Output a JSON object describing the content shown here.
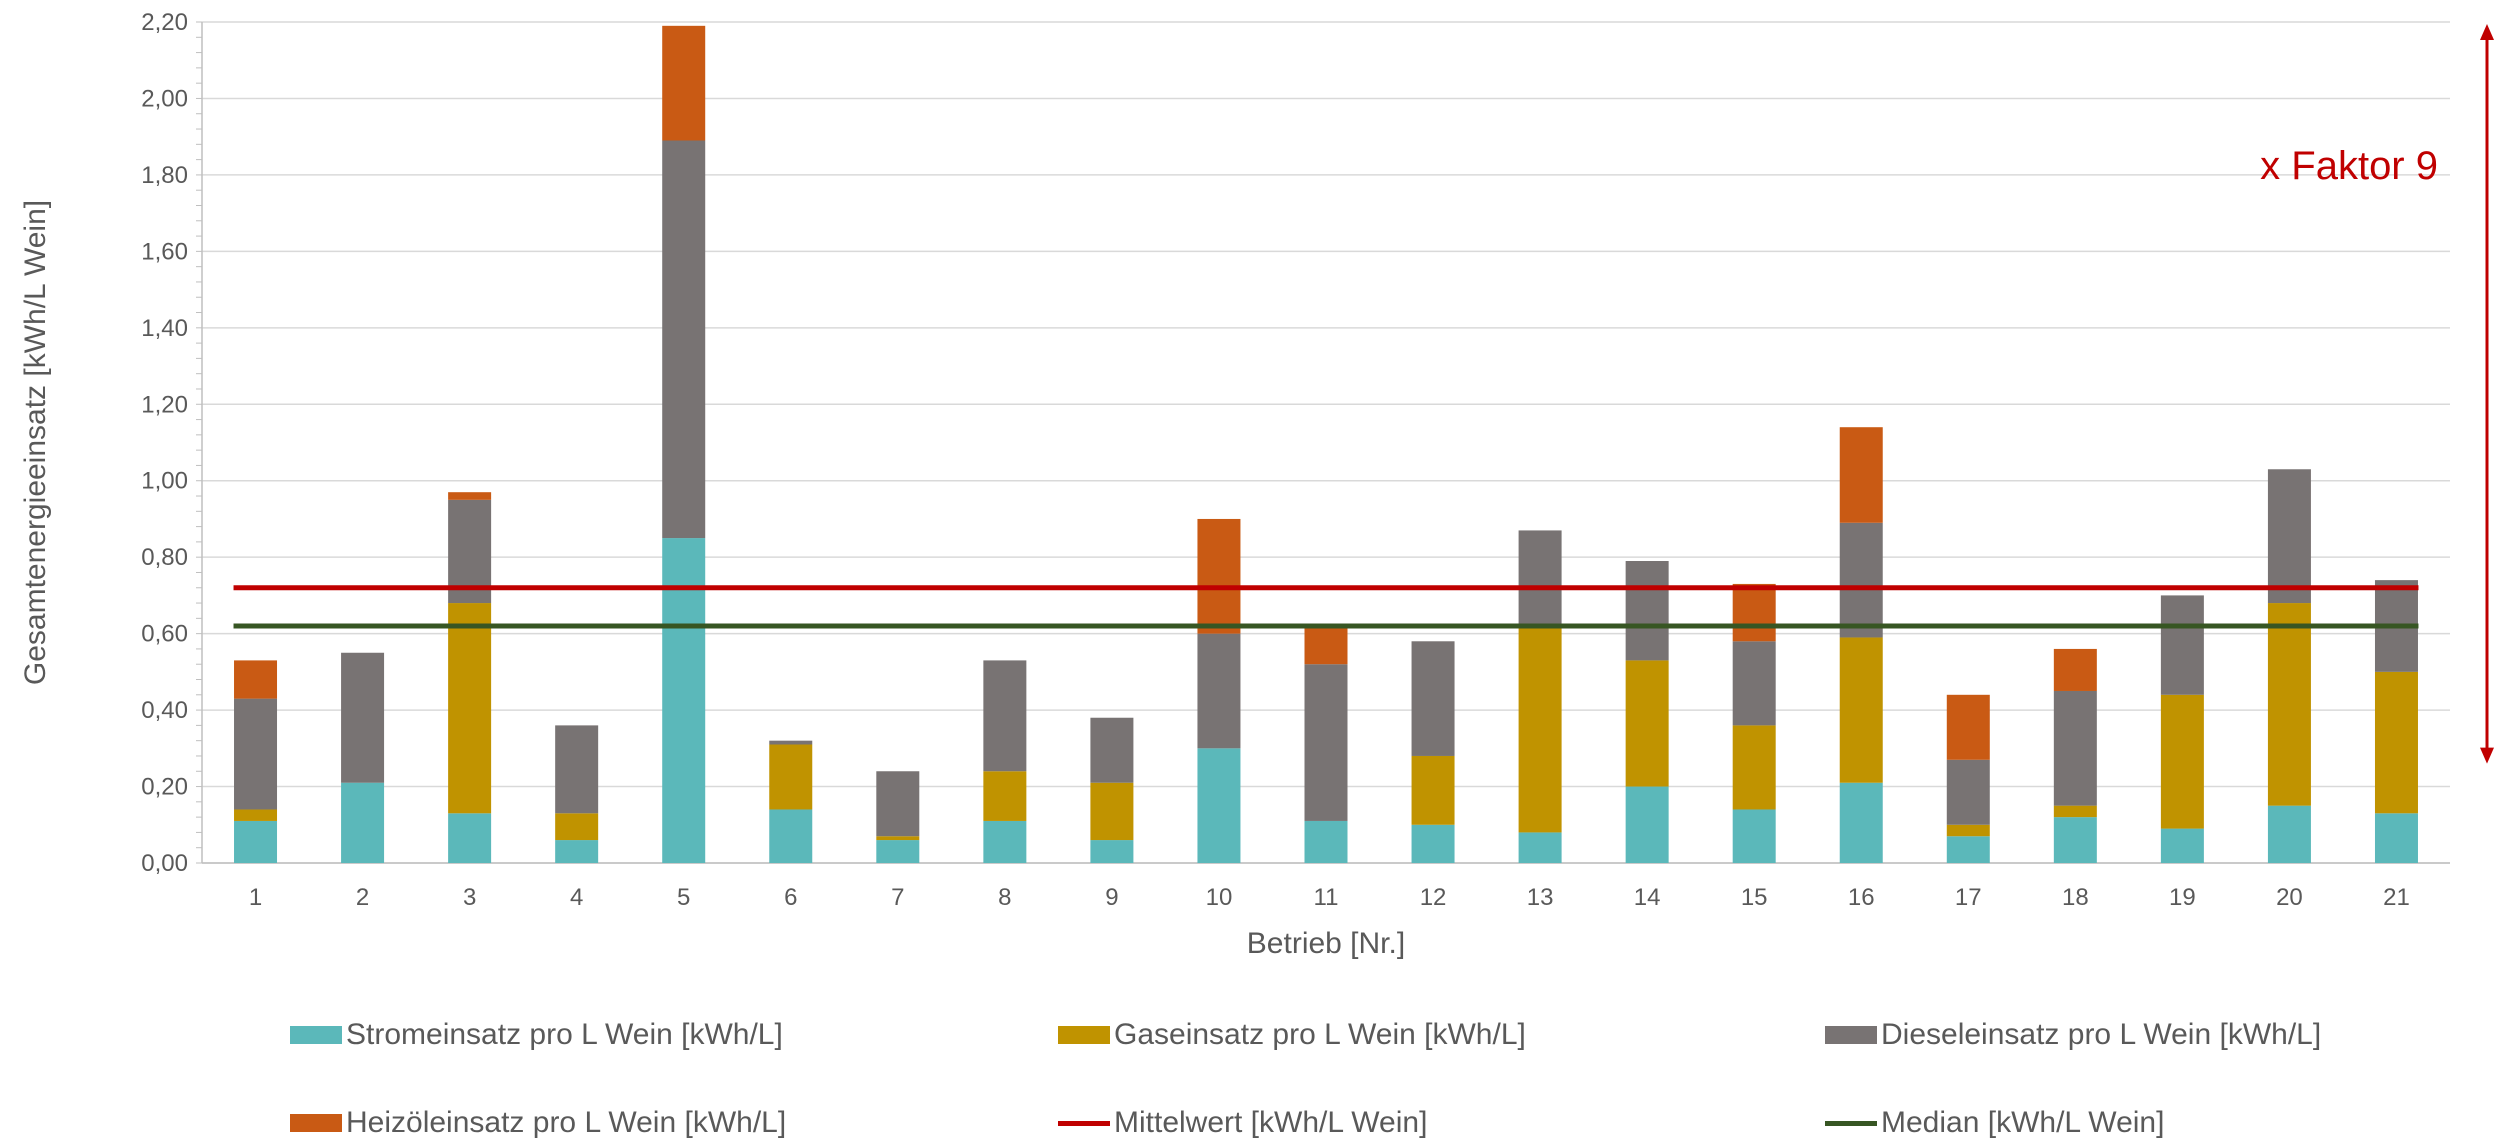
{
  "chart_data": {
    "type": "bar",
    "stacked": true,
    "categories": [
      "1",
      "2",
      "3",
      "4",
      "5",
      "6",
      "7",
      "8",
      "9",
      "10",
      "11",
      "12",
      "13",
      "14",
      "15",
      "16",
      "17",
      "18",
      "19",
      "20",
      "21"
    ],
    "series": [
      {
        "name": "Stromeinsatz pro L Wein [kWh/L]",
        "color": "#5BB8BA",
        "values": [
          0.11,
          0.21,
          0.13,
          0.06,
          0.85,
          0.14,
          0.06,
          0.11,
          0.06,
          0.3,
          0.11,
          0.1,
          0.08,
          0.2,
          0.14,
          0.21,
          0.07,
          0.12,
          0.09,
          0.15,
          0.13
        ]
      },
      {
        "name": "Gaseinsatz pro L Wein [kWh/L]",
        "color": "#C09300",
        "values": [
          0.03,
          0.0,
          0.55,
          0.07,
          0.0,
          0.17,
          0.01,
          0.13,
          0.15,
          0.0,
          0.0,
          0.18,
          0.54,
          0.33,
          0.22,
          0.38,
          0.03,
          0.03,
          0.35,
          0.53,
          0.37
        ]
      },
      {
        "name": "Dieseleinsatz pro L Wein [kWh/L]",
        "color": "#787373",
        "values": [
          0.29,
          0.34,
          0.27,
          0.23,
          1.04,
          0.01,
          0.17,
          0.29,
          0.17,
          0.3,
          0.41,
          0.3,
          0.25,
          0.26,
          0.22,
          0.3,
          0.17,
          0.3,
          0.26,
          0.35,
          0.24
        ]
      },
      {
        "name": "Heizöleinsatz pro L Wein [kWh/L]",
        "color": "#C95A14",
        "values": [
          0.1,
          0.0,
          0.02,
          0.0,
          0.3,
          0.0,
          0.0,
          0.0,
          0.0,
          0.3,
          0.1,
          0.0,
          0.0,
          0.0,
          0.15,
          0.25,
          0.17,
          0.11,
          0.0,
          0.0,
          0.0
        ]
      }
    ],
    "lines": [
      {
        "name": "Mittelwert [kWh/L Wein]",
        "color": "#C00000",
        "value": 0.72
      },
      {
        "name": "Median [kWh/L Wein]",
        "color": "#375623",
        "value": 0.62
      }
    ],
    "xlabel": "Betrieb [Nr.]",
    "ylabel": "Gesamtenergieeinsatz [kWh/L Wein]",
    "ylim": [
      0,
      2.2
    ],
    "yticks": [
      "0,00",
      "0,20",
      "0,40",
      "0,60",
      "0,80",
      "1,00",
      "1,20",
      "1,40",
      "1,60",
      "1,80",
      "2,00",
      "2,20"
    ],
    "grid": true,
    "legend_position": "bottom",
    "annotation": {
      "text": "x Faktor 9",
      "color": "#C00000"
    }
  }
}
